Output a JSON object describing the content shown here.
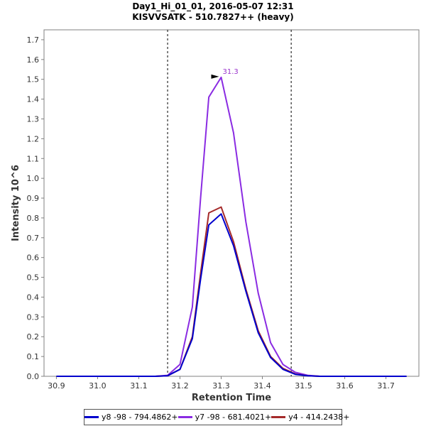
{
  "chart_data": {
    "type": "line",
    "title": "Day1_Hi_01_01, 2016-05-07 12:31",
    "subtitle": "KISVVSATK - 510.7827++ (heavy)",
    "xlabel": "Retention Time",
    "ylabel": "Intensity 10^6",
    "xlim": [
      30.87,
      31.78
    ],
    "ylim": [
      0,
      1.75
    ],
    "x_ticks": [
      "30.9",
      "31.0",
      "31.1",
      "31.2",
      "31.3",
      "31.4",
      "31.5",
      "31.6",
      "31.7"
    ],
    "y_ticks": [
      "0.0",
      "0.1",
      "0.2",
      "0.3",
      "0.4",
      "0.5",
      "0.6",
      "0.7",
      "0.8",
      "0.9",
      "1.0",
      "1.1",
      "1.2",
      "1.3",
      "1.4",
      "1.5",
      "1.6",
      "1.7"
    ],
    "x": [
      30.9,
      30.93,
      30.96,
      30.99,
      31.02,
      31.05,
      31.08,
      31.11,
      31.14,
      31.17,
      31.2,
      31.23,
      31.25,
      31.27,
      31.3,
      31.33,
      31.36,
      31.39,
      31.42,
      31.45,
      31.48,
      31.51,
      31.54,
      31.57,
      31.6,
      31.63,
      31.66,
      31.69,
      31.72,
      31.75
    ],
    "series": [
      {
        "name": "y7 -98 - 681.4021+",
        "color": "#8a2be2",
        "values": [
          0,
          0,
          0,
          0,
          0,
          0,
          0,
          0,
          0,
          0.005,
          0.06,
          0.35,
          0.9,
          1.41,
          1.51,
          1.23,
          0.78,
          0.42,
          0.17,
          0.06,
          0.02,
          0.005,
          0,
          0,
          0,
          0,
          0,
          0,
          0,
          0
        ]
      },
      {
        "name": "y4 - 414.2438+",
        "color": "#a52a2a",
        "values": [
          0,
          0,
          0,
          0,
          0,
          0,
          0,
          0,
          0,
          0.003,
          0.035,
          0.2,
          0.52,
          0.825,
          0.855,
          0.68,
          0.44,
          0.23,
          0.1,
          0.04,
          0.012,
          0.003,
          0,
          0,
          0,
          0,
          0,
          0,
          0,
          0
        ]
      },
      {
        "name": "y8 -98 - 794.4862+",
        "color": "#0000cd",
        "values": [
          0,
          0,
          0,
          0,
          0,
          0,
          0,
          0,
          0,
          0.003,
          0.035,
          0.19,
          0.49,
          0.765,
          0.82,
          0.66,
          0.43,
          0.22,
          0.095,
          0.035,
          0.01,
          0.003,
          0,
          0,
          0,
          0,
          0,
          0,
          0,
          0
        ]
      }
    ],
    "legend_order": [
      "y8 -98 - 794.4862+",
      "y7 -98 - 681.4021+",
      "y4 - 414.2438+"
    ],
    "legend_position": "bottom",
    "vlines": [
      31.17,
      31.47
    ],
    "annotation": {
      "label": "31.3",
      "x": 31.3,
      "y": 1.51,
      "color": "#9932cc"
    }
  }
}
